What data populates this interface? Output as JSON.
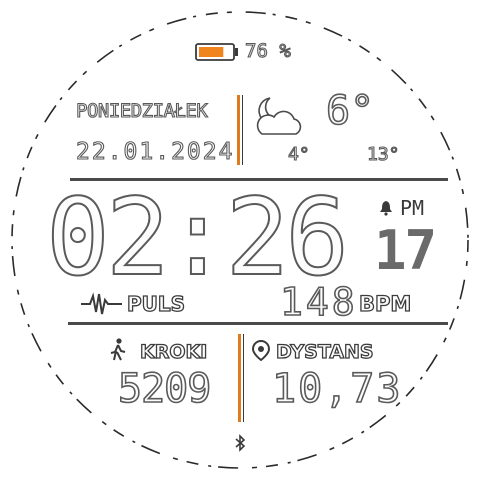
{
  "battery": {
    "percent_label": "76 %",
    "level": 0.76,
    "fill_color": "#f0841e"
  },
  "date": {
    "weekday": "PONIEDZIAŁEK",
    "date": "22.01.2024"
  },
  "weather": {
    "icon": "partly-cloudy-night-icon",
    "current_temp": "6°",
    "low_temp": "4°",
    "high_temp": "13°"
  },
  "time": {
    "hours_minutes": "02:26",
    "ampm": "PM",
    "seconds": "17",
    "alarm_icon": "bell-icon"
  },
  "pulse": {
    "icon": "heartbeat-icon",
    "label": "PULS",
    "value": "148",
    "unit": "BPM"
  },
  "steps": {
    "icon": "walker-icon",
    "label": "KROKI",
    "value": "5209"
  },
  "distance": {
    "icon": "location-pin-icon",
    "label": "DYSTANS",
    "value": "10,73"
  },
  "bottom": {
    "icon": "bluetooth-icon"
  },
  "colors": {
    "accent": "#e07a1e",
    "dark": "#4a4a4a",
    "seconds": "#666666"
  }
}
